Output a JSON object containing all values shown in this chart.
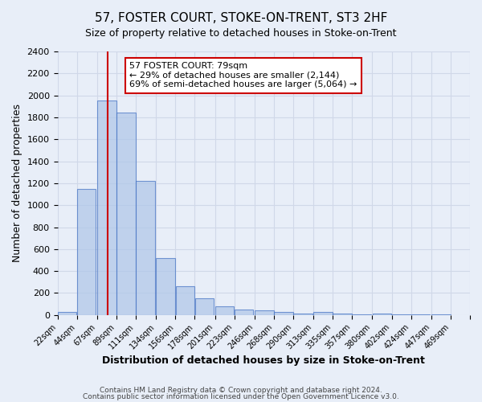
{
  "title": "57, FOSTER COURT, STOKE-ON-TRENT, ST3 2HF",
  "subtitle": "Size of property relative to detached houses in Stoke-on-Trent",
  "xlabel": "Distribution of detached houses by size in Stoke-on-Trent",
  "ylabel": "Number of detached properties",
  "bin_labels": [
    "22sqm",
    "44sqm",
    "67sqm",
    "89sqm",
    "111sqm",
    "134sqm",
    "156sqm",
    "178sqm",
    "201sqm",
    "223sqm",
    "246sqm",
    "268sqm",
    "290sqm",
    "313sqm",
    "335sqm",
    "357sqm",
    "380sqm",
    "402sqm",
    "424sqm",
    "447sqm",
    "469sqm"
  ],
  "bin_edges": [
    22,
    44,
    67,
    89,
    111,
    134,
    156,
    178,
    201,
    223,
    246,
    268,
    290,
    313,
    335,
    357,
    380,
    402,
    424,
    447,
    469
  ],
  "bar_heights": [
    30,
    1150,
    1950,
    1840,
    1220,
    520,
    265,
    150,
    80,
    50,
    40,
    25,
    15,
    30,
    10,
    5,
    10,
    5,
    5,
    5
  ],
  "bar_color": "#aec6e8",
  "bar_edge_color": "#4472c4",
  "bar_alpha": 0.7,
  "grid_color": "#d0d8e8",
  "background_color": "#e8eef8",
  "ylim": [
    0,
    2400
  ],
  "yticks": [
    0,
    200,
    400,
    600,
    800,
    1000,
    1200,
    1400,
    1600,
    1800,
    2000,
    2200,
    2400
  ],
  "property_line_x": 79,
  "property_line_color": "#cc0000",
  "annotation_title": "57 FOSTER COURT: 79sqm",
  "annotation_line1": "← 29% of detached houses are smaller (2,144)",
  "annotation_line2": "69% of semi-detached houses are larger (5,064) →",
  "footer_line1": "Contains HM Land Registry data © Crown copyright and database right 2024.",
  "footer_line2": "Contains public sector information licensed under the Open Government Licence v3.0."
}
